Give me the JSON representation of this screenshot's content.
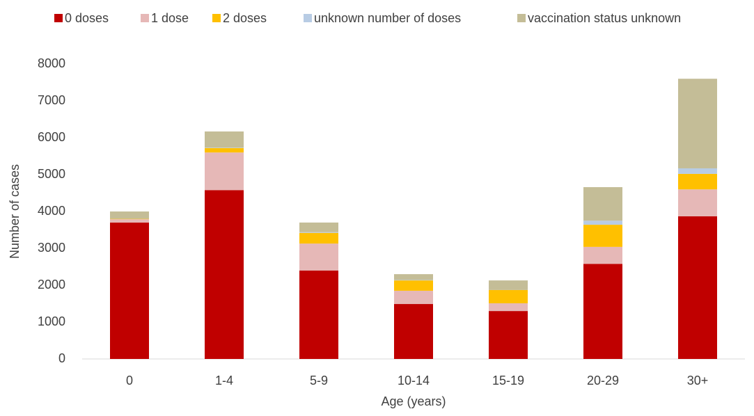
{
  "chart_data": {
    "type": "stacked_bar",
    "categories": [
      "0",
      "1-4",
      "5-9",
      "10-14",
      "15-19",
      "20-29",
      "30+"
    ],
    "series": [
      {
        "name": "0 doses",
        "color": "#c00000",
        "values": [
          3700,
          4580,
          2400,
          1490,
          1300,
          2580,
          3870
        ]
      },
      {
        "name": "1 dose",
        "color": "#e6b8b7",
        "values": [
          90,
          1020,
          730,
          360,
          210,
          460,
          730
        ]
      },
      {
        "name": "2 doses",
        "color": "#ffc000",
        "values": [
          10,
          120,
          290,
          280,
          360,
          600,
          420
        ]
      },
      {
        "name": "unknown number of doses",
        "color": "#b8cce4",
        "values": [
          0,
          10,
          20,
          10,
          0,
          110,
          150
        ]
      },
      {
        "name": "vaccination status unknown",
        "color": "#c4bd97",
        "values": [
          200,
          440,
          260,
          160,
          260,
          910,
          2430
        ]
      }
    ],
    "xlabel": "Age (years)",
    "ylabel": "Number of cases",
    "ylim": [
      0,
      8000
    ],
    "yticks": [
      0,
      1000,
      2000,
      3000,
      4000,
      5000,
      6000,
      7000,
      8000
    ],
    "grid": false,
    "legend": "top"
  }
}
